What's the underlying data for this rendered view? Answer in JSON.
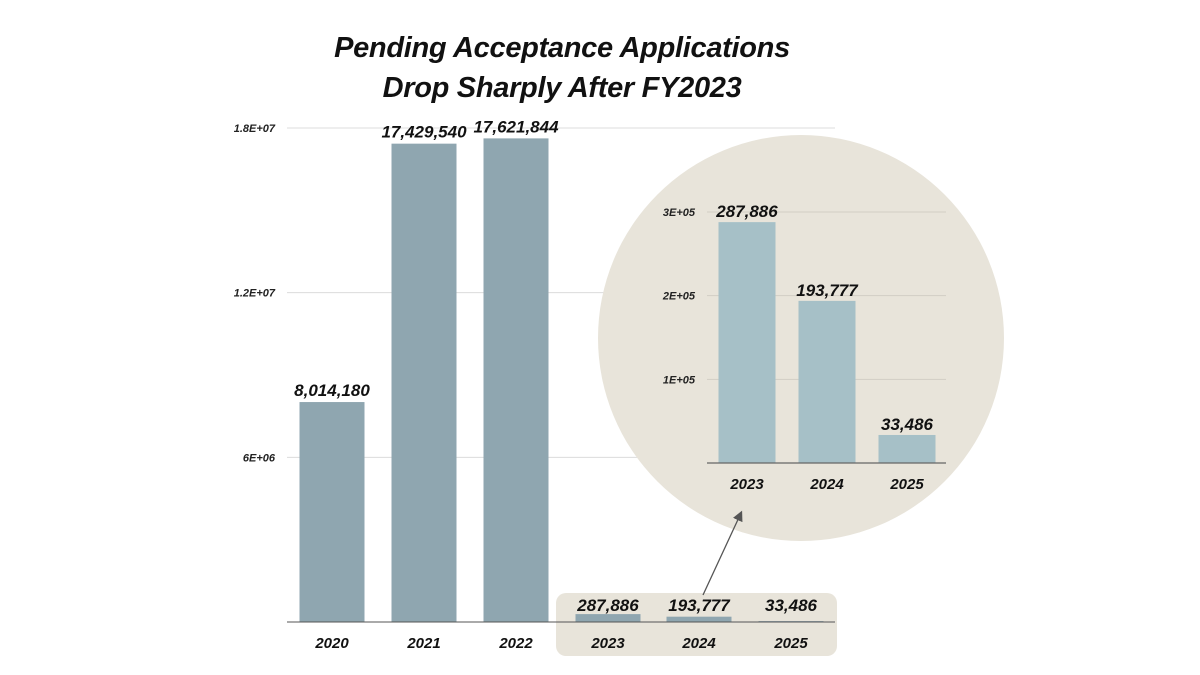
{
  "chart_data": {
    "type": "bar",
    "title": "Pending Acceptance Applications Drop Sharply After FY2023",
    "title_lines": [
      "Pending Acceptance Applications",
      "Drop Sharply After FY2023"
    ],
    "xlabel": "",
    "ylabel": "",
    "categories": [
      "2020",
      "2021",
      "2022",
      "2023",
      "2024",
      "2025"
    ],
    "values": [
      8014180,
      17429540,
      17621844,
      287886,
      193777,
      33486
    ],
    "value_labels": [
      "8,014,180",
      "17,429,540",
      "17,621,844",
      "287,886",
      "193,777",
      "33,486"
    ],
    "ylim": [
      0,
      18000000
    ],
    "yticks": [
      6000000,
      12000000,
      18000000
    ],
    "ytick_labels": [
      "6E+06",
      "1.2E+07",
      "1.8E+07"
    ],
    "grid": true,
    "bar_color": "#8fa6b0",
    "highlight_bg": "#e8e4da",
    "inset": {
      "type": "bar",
      "categories": [
        "2023",
        "2024",
        "2025"
      ],
      "values": [
        287886,
        193777,
        33486
      ],
      "value_labels": [
        "287,886",
        "193,777",
        "33,486"
      ],
      "ylim": [
        0,
        300000
      ],
      "yticks": [
        100000,
        200000,
        300000
      ],
      "ytick_labels": [
        "1E+05",
        "2E+05",
        "3E+05"
      ],
      "bar_color": "#a6c0c7",
      "background": "#e8e4da",
      "shape": "circle"
    }
  }
}
